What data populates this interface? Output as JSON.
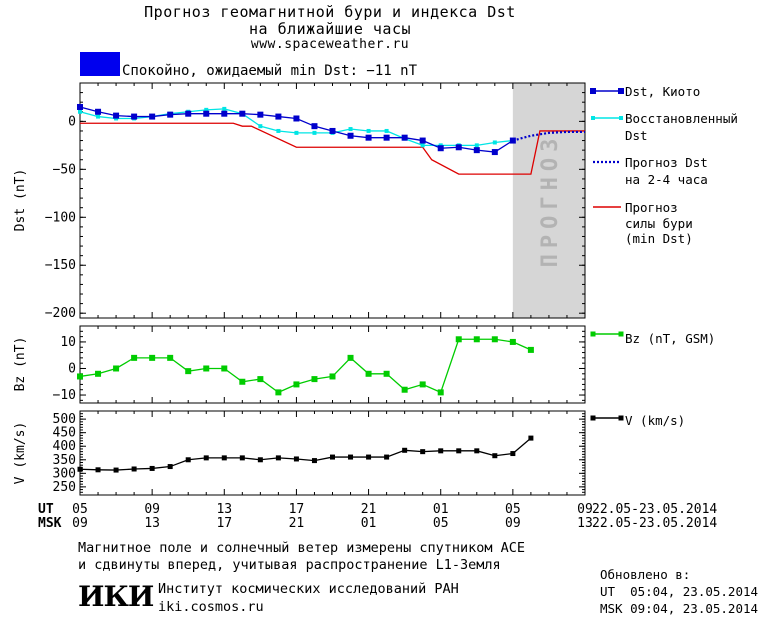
{
  "header": {
    "title_line1": "Прогноз геомагнитной бури и индекса Dst",
    "title_line2": "на ближайшие часы",
    "site": "www.spaceweather.ru"
  },
  "status": {
    "text": "Спокойно, ожидаемый min Dst: −11 nT",
    "color": "#0000ee"
  },
  "forecast_band_label": "ПРОГНОЗ",
  "colors": {
    "dst_kyoto": "#0000cc",
    "dst_restored": "#00e5e5",
    "dst_forecast": "#0000cc",
    "storm_forecast": "#dd0000",
    "bz": "#00cc00",
    "v": "#000000",
    "forecast_band": "#d6d6d6"
  },
  "legend": {
    "dst_kyoto": "Dst, Киото",
    "dst_restored_1": "Восстановленный",
    "dst_restored_2": "Dst",
    "dst_forecast_1": "Прогноз Dst",
    "dst_forecast_2": "на 2-4 часа",
    "storm_1": "Прогноз",
    "storm_2": "силы бури",
    "storm_3": "(min Dst)",
    "bz": "Bz (nT, GSM)",
    "v": "V (km/s)"
  },
  "axes": {
    "ut_label": "UT",
    "msk_label": "MSK",
    "ut_ticks": [
      "05",
      "09",
      "13",
      "17",
      "21",
      "01",
      "05",
      "09"
    ],
    "msk_ticks": [
      "09",
      "13",
      "17",
      "21",
      "01",
      "05",
      "09",
      "13"
    ],
    "date_range": "22.05-23.05.2014"
  },
  "chart_data": [
    {
      "type": "line",
      "ylabel": "Dst (nT)",
      "ylim": [
        -205,
        40
      ],
      "yticks": [
        0,
        -50,
        -100,
        -150,
        -200
      ],
      "x_unit": "hours since 05 UT",
      "xlim": [
        0,
        28
      ],
      "forecast_band_x": [
        24,
        28
      ],
      "series": [
        {
          "name": "Dst, Киото",
          "x": [
            0,
            1,
            2,
            3,
            4,
            5,
            6,
            7,
            8,
            9,
            10,
            11,
            12,
            13,
            14,
            15,
            16,
            17,
            18,
            19,
            20,
            21,
            22,
            23,
            24
          ],
          "y": [
            15,
            10,
            6,
            5,
            5,
            7,
            8,
            8,
            8,
            8,
            7,
            5,
            3,
            -5,
            -10,
            -15,
            -17,
            -17,
            -17,
            -20,
            -28,
            -27,
            -30,
            -32,
            -20
          ]
        },
        {
          "name": "Восстановленный Dst",
          "x": [
            0,
            1,
            2,
            3,
            4,
            5,
            6,
            7,
            8,
            9,
            10,
            11,
            12,
            13,
            14,
            15,
            16,
            17,
            18,
            19,
            20,
            21,
            22,
            23,
            24
          ],
          "y": [
            10,
            5,
            3,
            3,
            5,
            8,
            10,
            12,
            13,
            8,
            -5,
            -10,
            -12,
            -12,
            -12,
            -8,
            -10,
            -10,
            -18,
            -25,
            -25,
            -25,
            -25,
            -22,
            -20
          ]
        },
        {
          "name": "Прогноз Dst на 2-4 часа",
          "x": [
            24,
            25,
            26,
            27,
            28
          ],
          "y": [
            -20,
            -15,
            -12,
            -11,
            -11
          ]
        },
        {
          "name": "Прогноз силы бури (min Dst)",
          "x": [
            0,
            8.5,
            9,
            9.5,
            12,
            19,
            19.5,
            21,
            25,
            25.5,
            28
          ],
          "y": [
            -2,
            -2,
            -5,
            -5,
            -27,
            -27,
            -40,
            -55,
            -55,
            -10,
            -10
          ]
        }
      ]
    },
    {
      "type": "line",
      "ylabel": "Bz (nT)",
      "ylim": [
        -13,
        16
      ],
      "yticks": [
        10,
        0,
        -10
      ],
      "series": [
        {
          "name": "Bz (nT, GSM)",
          "x": [
            0,
            1,
            2,
            3,
            4,
            5,
            6,
            7,
            8,
            9,
            10,
            11,
            12,
            13,
            14,
            15,
            16,
            17,
            18,
            19,
            20,
            21,
            22,
            23,
            24,
            25
          ],
          "y": [
            -3,
            -2,
            0,
            4,
            4,
            4,
            -1,
            0,
            0,
            -5,
            -4,
            -9,
            -6,
            -4,
            -3,
            4,
            -2,
            -2,
            -8,
            -6,
            -9,
            11,
            11,
            11,
            10,
            7
          ]
        }
      ]
    },
    {
      "type": "line",
      "ylabel": "V (km/s)",
      "ylim": [
        220,
        530
      ],
      "yticks": [
        500,
        450,
        400,
        350,
        300,
        250
      ],
      "series": [
        {
          "name": "V (km/s)",
          "x": [
            0,
            1,
            2,
            3,
            4,
            5,
            6,
            7,
            8,
            9,
            10,
            11,
            12,
            13,
            14,
            15,
            16,
            17,
            18,
            19,
            20,
            21,
            22,
            23,
            24,
            25
          ],
          "y": [
            315,
            313,
            312,
            316,
            318,
            325,
            350,
            357,
            357,
            357,
            350,
            357,
            353,
            347,
            360,
            360,
            360,
            360,
            385,
            380,
            383,
            383,
            383,
            365,
            373,
            430
          ]
        }
      ]
    }
  ],
  "footer": {
    "line1": "Магнитное поле и солнечный ветер измерены спутником ACE",
    "line2": "и сдвинуты вперед, учитывая распространение L1-Земля",
    "institute": "Институт космических исследований РАН",
    "site": "iki.cosmos.ru",
    "logo": "ИКИ",
    "updated_label": "Обновлено в:",
    "updated_ut": "UT  05:04, 23.05.2014",
    "updated_msk": "MSK 09:04, 23.05.2014"
  }
}
